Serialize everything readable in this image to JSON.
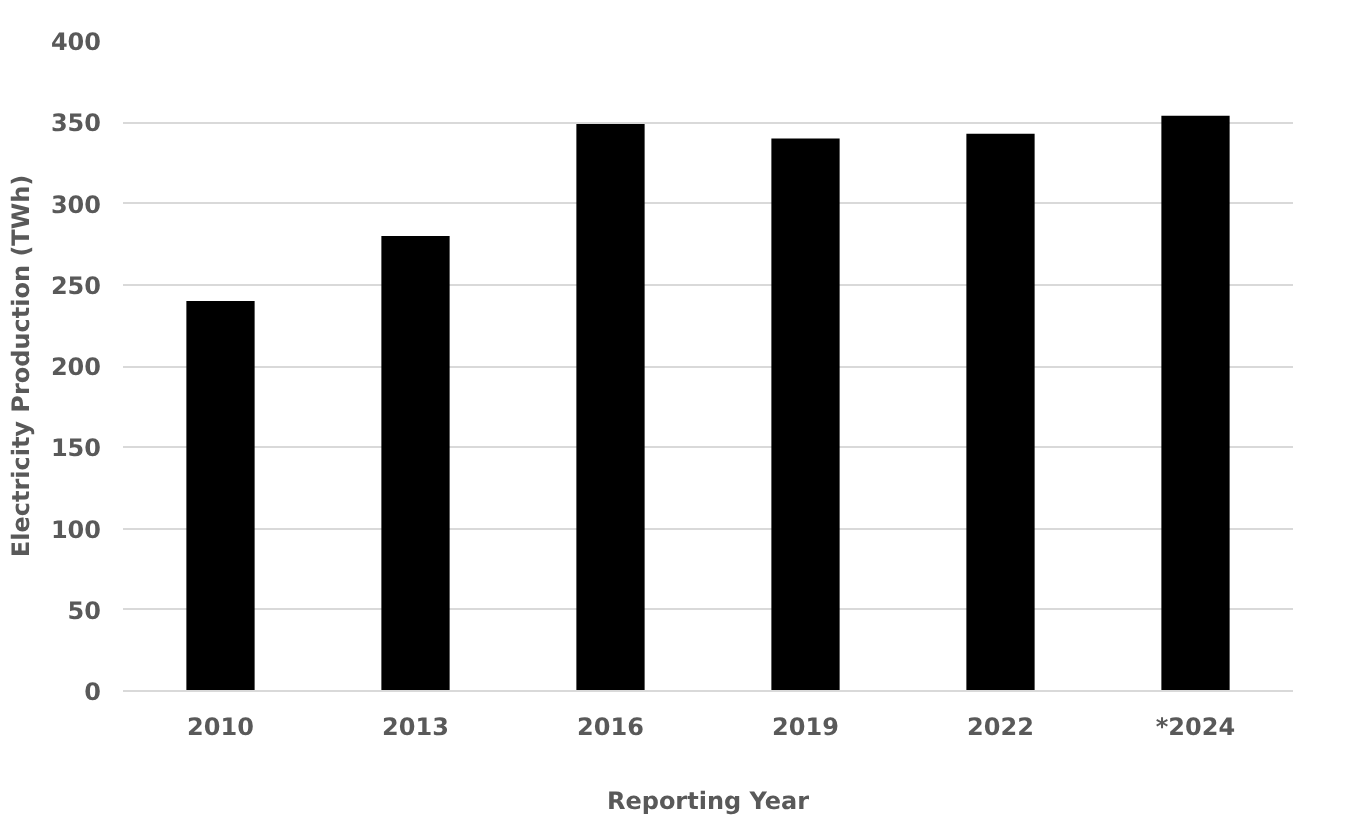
{
  "chart_data": {
    "type": "bar",
    "xlabel": "Reporting Year",
    "ylabel": "Electricity Production (TWh)",
    "categories": [
      "2010",
      "2013",
      "2016",
      "2019",
      "2022",
      "*2024"
    ],
    "values": [
      240,
      280,
      349,
      340,
      343,
      354
    ],
    "color": "#000000",
    "ylim": [
      0,
      400
    ],
    "yticks": [
      0,
      50,
      100,
      150,
      200,
      250,
      300,
      350,
      400
    ],
    "grid": "y"
  }
}
